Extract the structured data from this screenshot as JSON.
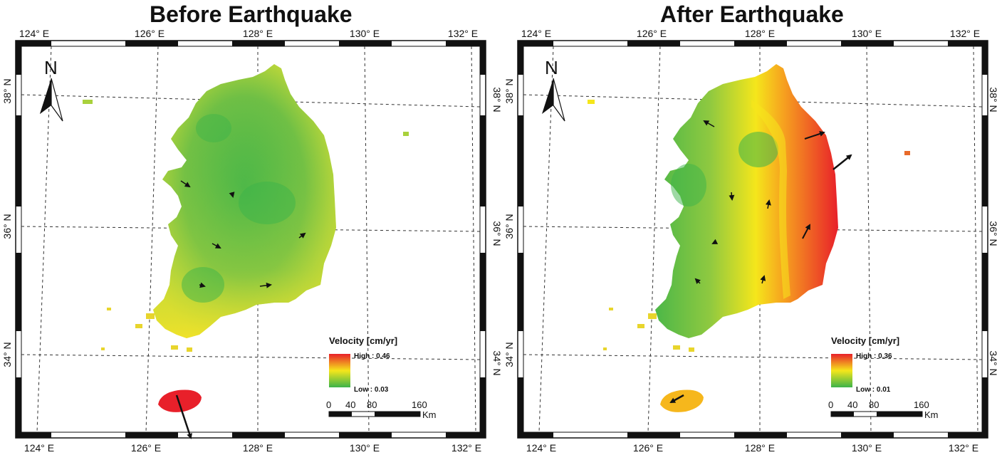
{
  "panels": [
    {
      "title": "Before Earthquake",
      "top_ticks": [
        "124° E",
        "126° E",
        "128° E",
        "130° E",
        "132° E"
      ],
      "bottom_ticks": [
        "124° E",
        "126° E",
        "128° E",
        "130° E",
        "132° E"
      ],
      "left_ticks": [
        "38° N",
        "36° N",
        "34° N"
      ],
      "right_ticks": [
        "38° N",
        "36° N",
        "34° N"
      ],
      "north": "N",
      "legend": {
        "title": "Velocity [cm/yr]",
        "high": "High : 0.46",
        "low": "Low : 0.03"
      },
      "scale": {
        "labels": [
          "0",
          "40",
          "80",
          "160"
        ],
        "unit": "Km"
      }
    },
    {
      "title": "After Earthquake",
      "top_ticks": [
        "124° E",
        "126° E",
        "128° E",
        "130° E",
        "132° E"
      ],
      "bottom_ticks": [
        "124° E",
        "126° E",
        "128° E",
        "130° E",
        "132° E"
      ],
      "left_ticks": [
        "38° N",
        "36° N",
        "34° N"
      ],
      "right_ticks": [
        "38° N",
        "36° N",
        "34° N"
      ],
      "north": "N",
      "legend": {
        "title": "Velocity [cm/yr]",
        "high": "High : 0.36",
        "low": "Low : 0.01"
      },
      "scale": {
        "labels": [
          "0",
          "40",
          "80",
          "160"
        ],
        "unit": "Km"
      }
    }
  ],
  "colors": {
    "high": "#e8202a",
    "mid": "#f5e61b",
    "low": "#3cb34a"
  }
}
